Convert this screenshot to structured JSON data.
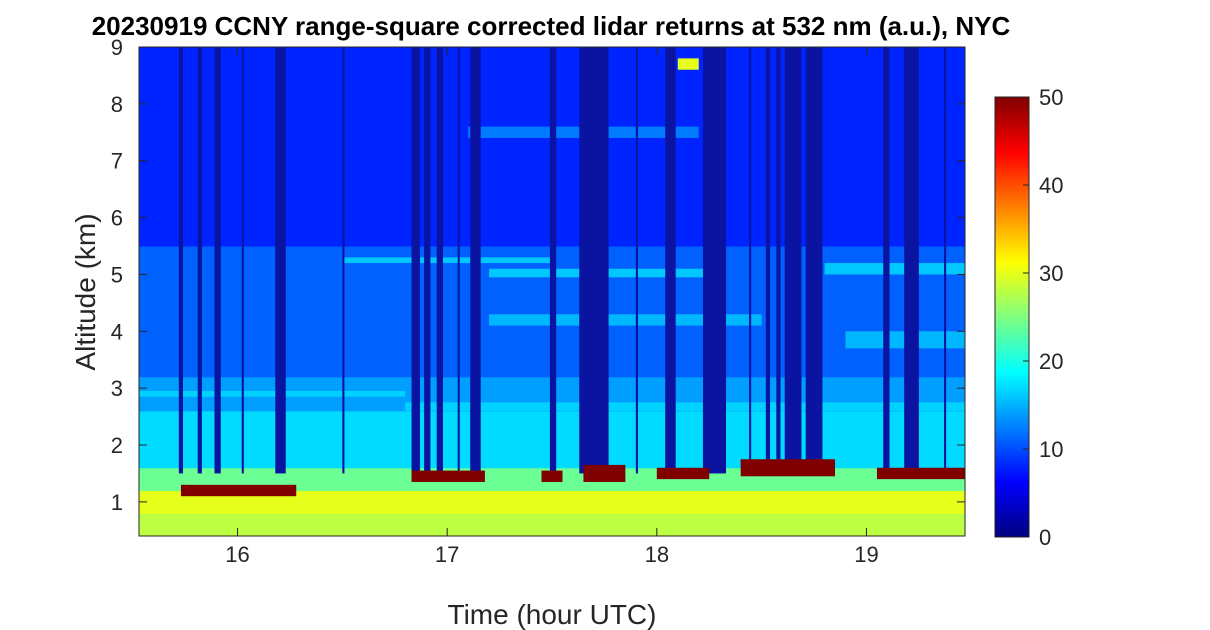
{
  "chart_data": {
    "type": "heatmap",
    "title": "20230919 CCNY range-square corrected lidar returns at 532 nm (a.u.), NYC",
    "xlabel": "Time (hour UTC)",
    "ylabel": "Altitude (km)",
    "xlim": [
      15.53,
      19.47
    ],
    "ylim": [
      0.4,
      9
    ],
    "xticks": [
      "16",
      "17",
      "18",
      "19"
    ],
    "xtick_values": [
      16,
      17,
      18,
      19
    ],
    "yticks": [
      "1",
      "2",
      "3",
      "4",
      "5",
      "6",
      "7",
      "8",
      "9"
    ],
    "ytick_values": [
      1,
      2,
      3,
      4,
      5,
      6,
      7,
      8,
      9
    ],
    "colorbar": {
      "colormap": "jet",
      "range": [
        0,
        50
      ],
      "ticks": [
        "0",
        "10",
        "20",
        "30",
        "40",
        "50"
      ],
      "tick_values": [
        0,
        10,
        20,
        30,
        40,
        50
      ]
    },
    "profile_bands": [
      {
        "altitude": [
          0.4,
          0.8
        ],
        "value": 28
      },
      {
        "altitude": [
          0.8,
          1.2
        ],
        "value": 30
      },
      {
        "altitude": [
          1.2,
          1.6
        ],
        "value": 24
      },
      {
        "altitude": [
          1.6,
          2.6
        ],
        "value": 17
      },
      {
        "altitude": [
          2.6,
          3.2
        ],
        "value": 14
      },
      {
        "altitude": [
          3.2,
          5.5
        ],
        "value": 11
      },
      {
        "altitude": [
          5.5,
          9.0
        ],
        "value": 8
      }
    ],
    "aerosol_layers": [
      {
        "time": [
          15.53,
          16.8
        ],
        "altitude": [
          2.85,
          2.95
        ],
        "value": 17
      },
      {
        "time": [
          16.8,
          19.47
        ],
        "altitude": [
          2.6,
          2.75
        ],
        "value": 17
      },
      {
        "time": [
          16.5,
          17.5
        ],
        "altitude": [
          5.2,
          5.3
        ],
        "value": 17
      },
      {
        "time": [
          17.2,
          18.3
        ],
        "altitude": [
          4.95,
          5.1
        ],
        "value": 17
      },
      {
        "time": [
          18.8,
          19.47
        ],
        "altitude": [
          5.0,
          5.2
        ],
        "value": 17
      },
      {
        "time": [
          17.2,
          18.5
        ],
        "altitude": [
          4.1,
          4.3
        ],
        "value": 16
      },
      {
        "time": [
          18.9,
          19.47
        ],
        "altitude": [
          3.7,
          4.0
        ],
        "value": 16
      },
      {
        "time": [
          17.1,
          18.2
        ],
        "altitude": [
          7.4,
          7.6
        ],
        "value": 13
      }
    ],
    "clouds": [
      {
        "time": [
          15.73,
          16.28
        ],
        "altitude": [
          1.1,
          1.3
        ],
        "value": 50
      },
      {
        "time": [
          16.83,
          17.18
        ],
        "altitude": [
          1.35,
          1.55
        ],
        "value": 50
      },
      {
        "time": [
          17.45,
          17.55
        ],
        "altitude": [
          1.35,
          1.55
        ],
        "value": 50
      },
      {
        "time": [
          17.65,
          17.85
        ],
        "altitude": [
          1.35,
          1.65
        ],
        "value": 50
      },
      {
        "time": [
          18.0,
          18.25
        ],
        "altitude": [
          1.4,
          1.6
        ],
        "value": 50
      },
      {
        "time": [
          18.4,
          18.85
        ],
        "altitude": [
          1.45,
          1.75
        ],
        "value": 50
      },
      {
        "time": [
          19.05,
          19.47
        ],
        "altitude": [
          1.4,
          1.6
        ],
        "value": 50
      },
      {
        "time": [
          18.1,
          18.2
        ],
        "altitude": [
          8.6,
          8.8
        ],
        "value": 30
      }
    ],
    "dropouts": [
      [
        15.72,
        15.74
      ],
      [
        15.81,
        15.83
      ],
      [
        15.89,
        15.92
      ],
      [
        16.02,
        16.03
      ],
      [
        16.18,
        16.23
      ],
      [
        16.5,
        16.51
      ],
      [
        16.83,
        16.87
      ],
      [
        16.89,
        16.92
      ],
      [
        16.95,
        16.98
      ],
      [
        17.05,
        17.06
      ],
      [
        17.11,
        17.16
      ],
      [
        17.49,
        17.52
      ],
      [
        17.63,
        17.77
      ],
      [
        17.9,
        17.91
      ],
      [
        18.04,
        18.09
      ],
      [
        18.22,
        18.33
      ],
      [
        18.44,
        18.45
      ],
      [
        18.52,
        18.54
      ],
      [
        18.57,
        18.59
      ],
      [
        18.61,
        18.69
      ],
      [
        18.71,
        18.79
      ],
      [
        19.08,
        19.11
      ],
      [
        19.18,
        19.25
      ],
      [
        19.37,
        19.38
      ]
    ]
  }
}
